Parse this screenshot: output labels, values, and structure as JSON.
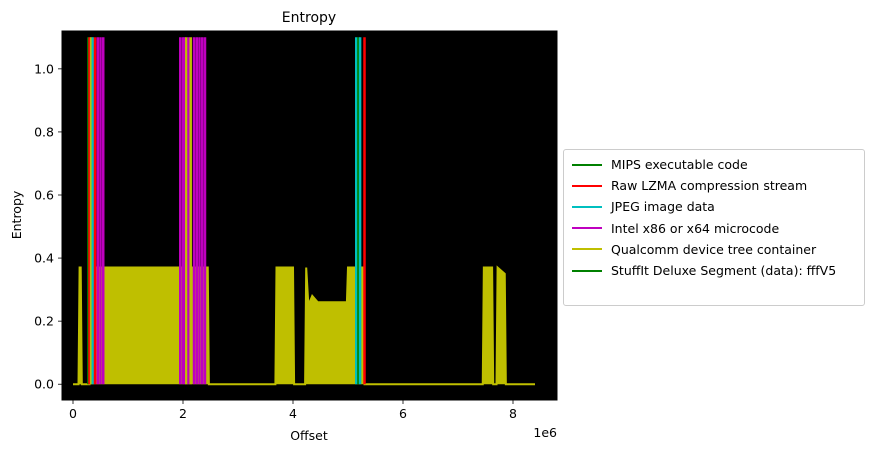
{
  "chart_data": {
    "type": "line",
    "title": "Entropy",
    "xlabel": "Offset",
    "ylabel": "Entropy",
    "x_offset_label": "1e6",
    "xlim": [
      -0.2,
      8.8
    ],
    "ylim": [
      -0.05,
      1.12
    ],
    "x_ticks": [
      0,
      2,
      4,
      6,
      8
    ],
    "y_ticks": [
      0.0,
      0.2,
      0.4,
      0.6,
      0.8,
      1.0
    ],
    "grid": false,
    "plot_background": "#000000",
    "legend_position": "center-left outside",
    "entropy_series": {
      "color": "#bfbf00",
      "baseline": 0.0,
      "points": [
        [
          0.0,
          0.0
        ],
        [
          0.1,
          0.0
        ],
        [
          0.12,
          0.37
        ],
        [
          0.14,
          0.37
        ],
        [
          0.16,
          0.0
        ],
        [
          0.3,
          0.0
        ],
        [
          0.32,
          0.37
        ],
        [
          2.45,
          0.37
        ],
        [
          2.47,
          0.0
        ],
        [
          3.68,
          0.0
        ],
        [
          3.7,
          0.37
        ],
        [
          4.0,
          0.37
        ],
        [
          4.02,
          0.0
        ],
        [
          4.22,
          0.0
        ],
        [
          4.24,
          0.37
        ],
        [
          4.28,
          0.25
        ],
        [
          4.35,
          0.28
        ],
        [
          4.45,
          0.26
        ],
        [
          4.6,
          0.26
        ],
        [
          4.8,
          0.26
        ],
        [
          4.98,
          0.26
        ],
        [
          5.0,
          0.37
        ],
        [
          5.2,
          0.37
        ],
        [
          5.28,
          0.37
        ],
        [
          5.3,
          0.0
        ],
        [
          7.45,
          0.0
        ],
        [
          7.47,
          0.37
        ],
        [
          7.62,
          0.37
        ],
        [
          7.64,
          0.0
        ],
        [
          7.7,
          0.0
        ],
        [
          7.72,
          0.37
        ],
        [
          7.85,
          0.35
        ],
        [
          7.87,
          0.0
        ],
        [
          8.4,
          0.0
        ]
      ]
    },
    "legend": [
      {
        "label": "MIPS executable code",
        "color": "#008000"
      },
      {
        "label": "Raw LZMA compression stream",
        "color": "#ff0000"
      },
      {
        "label": "JPEG image data",
        "color": "#00bfbf"
      },
      {
        "label": "Intel x86 or x64 microcode",
        "color": "#bf00bf"
      },
      {
        "label": "Qualcomm device tree container",
        "color": "#bfbf00"
      },
      {
        "label": "StuffIt Deluxe Segment (data): fffV5",
        "color": "#008000"
      }
    ],
    "signature_markers": [
      {
        "x": 0.28,
        "color": "#008000"
      },
      {
        "x": 0.3,
        "color": "#ff0000"
      },
      {
        "x": 0.33,
        "color": "#bfbf00"
      },
      {
        "x": 0.36,
        "color": "#00bfbf"
      },
      {
        "x": 0.4,
        "color": "#ff0000"
      },
      {
        "x": 0.45,
        "color": "#bf00bf"
      },
      {
        "x": 0.5,
        "color": "#bf00bf"
      },
      {
        "x": 0.55,
        "color": "#bf00bf"
      },
      {
        "x": 1.95,
        "color": "#bf00bf"
      },
      {
        "x": 2.0,
        "color": "#bf00bf"
      },
      {
        "x": 2.03,
        "color": "#bf00bf"
      },
      {
        "x": 2.06,
        "color": "#bfbf00"
      },
      {
        "x": 2.1,
        "color": "#bf00bf"
      },
      {
        "x": 2.14,
        "color": "#bfbf00"
      },
      {
        "x": 2.2,
        "color": "#bf00bf"
      },
      {
        "x": 2.25,
        "color": "#bf00bf"
      },
      {
        "x": 2.3,
        "color": "#bf00bf"
      },
      {
        "x": 2.35,
        "color": "#bf00bf"
      },
      {
        "x": 2.4,
        "color": "#bf00bf"
      },
      {
        "x": 5.15,
        "color": "#00bfbf"
      },
      {
        "x": 5.19,
        "color": "#008000"
      },
      {
        "x": 5.22,
        "color": "#00bfbf"
      },
      {
        "x": 5.3,
        "color": "#ff0000"
      }
    ]
  }
}
